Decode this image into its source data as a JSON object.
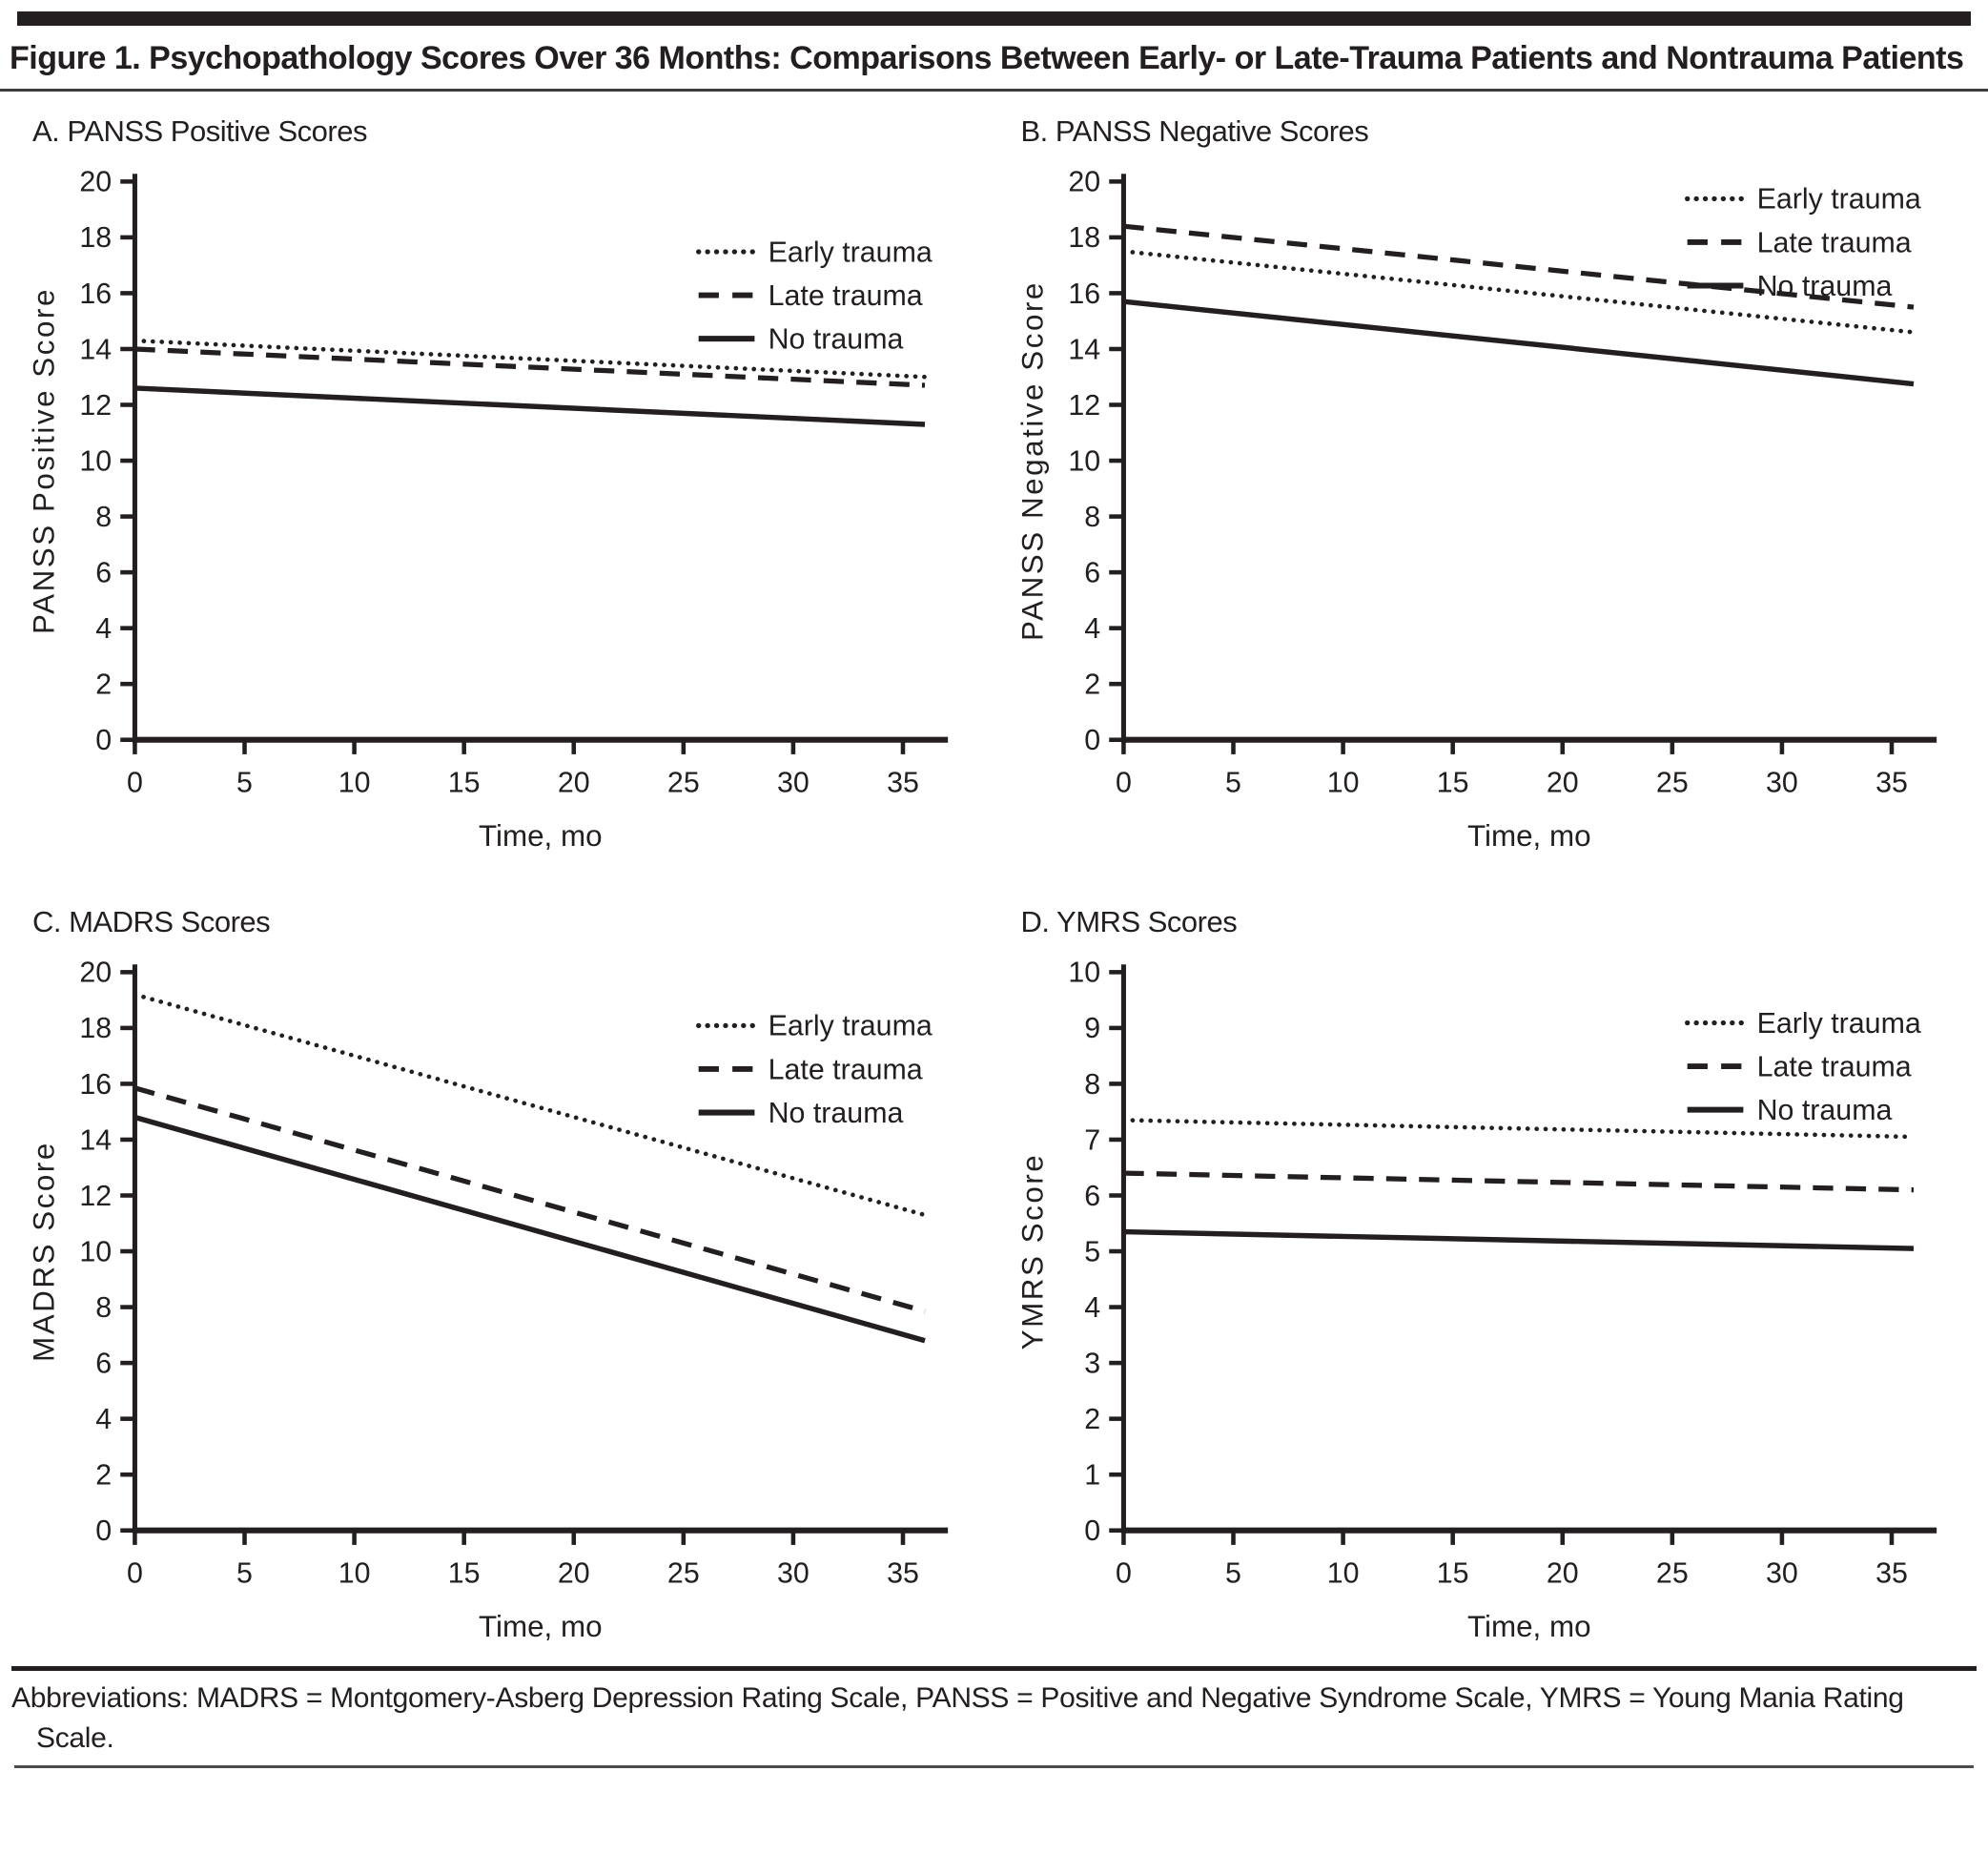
{
  "figure": {
    "title": "Figure 1. Psychopathology Scores Over 36 Months: Comparisons Between Early- or Late-Trauma Patients and Nontrauma Patients",
    "footnote": "Abbreviations: MADRS = Montgomery-Asberg Depression Rating Scale, PANSS = Positive and Negative Syndrome Scale, YMRS = Young Mania Rating Scale."
  },
  "colors": {
    "ink": "#231f20",
    "rule_dark": "#231f20",
    "rule_gray": "#4c4c4e"
  },
  "chart_data": [
    {
      "id": "A",
      "type": "line",
      "title": "A. PANSS Positive Scores",
      "xlabel": "Time, mo",
      "ylabel": "PANSS Positive Score",
      "xlim": [
        0,
        36
      ],
      "ylim": [
        0,
        20
      ],
      "xticks": [
        0,
        5,
        10,
        15,
        20,
        25,
        30,
        35
      ],
      "ytick_step": 2,
      "grid": false,
      "legend": {
        "position": "inside-upper-right",
        "fx": 0.695,
        "fy": 0.105
      },
      "x": [
        0,
        36
      ],
      "series": [
        {
          "name": "Early trauma",
          "style": "dotted",
          "values": [
            14.3,
            13.0
          ]
        },
        {
          "name": "Late trauma",
          "style": "dashed",
          "values": [
            14.0,
            12.7
          ]
        },
        {
          "name": "No trauma",
          "style": "solid",
          "values": [
            12.6,
            11.3
          ]
        }
      ]
    },
    {
      "id": "B",
      "type": "line",
      "title": "B. PANSS Negative Scores",
      "xlabel": "Time, mo",
      "ylabel": "PANSS Negative Score",
      "xlim": [
        0,
        36
      ],
      "ylim": [
        0,
        20
      ],
      "xticks": [
        0,
        5,
        10,
        15,
        20,
        25,
        30,
        35
      ],
      "ytick_step": 2,
      "grid": false,
      "legend": {
        "position": "inside-upper-right",
        "fx": 0.695,
        "fy": 0.01
      },
      "x": [
        0,
        36
      ],
      "series": [
        {
          "name": "Early trauma",
          "style": "dotted",
          "values": [
            17.5,
            14.6
          ]
        },
        {
          "name": "Late trauma",
          "style": "dashed",
          "values": [
            18.4,
            15.5
          ]
        },
        {
          "name": "No trauma",
          "style": "solid",
          "values": [
            15.7,
            12.75
          ]
        }
      ]
    },
    {
      "id": "C",
      "type": "line",
      "title": "C. MADRS Scores",
      "xlabel": "Time, mo",
      "ylabel": "MADRS Score",
      "xlim": [
        0,
        36
      ],
      "ylim": [
        0,
        20
      ],
      "xticks": [
        0,
        5,
        10,
        15,
        20,
        25,
        30,
        35
      ],
      "ytick_step": 2,
      "grid": false,
      "legend": {
        "position": "inside-upper-right",
        "fx": 0.695,
        "fy": 0.075
      },
      "x": [
        0,
        36
      ],
      "series": [
        {
          "name": "Early trauma",
          "style": "dotted",
          "values": [
            19.2,
            11.3
          ]
        },
        {
          "name": "Late trauma",
          "style": "dashed",
          "values": [
            15.85,
            7.85
          ]
        },
        {
          "name": "No trauma",
          "style": "solid",
          "values": [
            14.8,
            6.8
          ]
        }
      ]
    },
    {
      "id": "D",
      "type": "line",
      "title": "D. YMRS Scores",
      "xlabel": "Time, mo",
      "ylabel": "YMRS Score",
      "xlim": [
        0,
        36
      ],
      "ylim": [
        0,
        10
      ],
      "xticks": [
        0,
        5,
        10,
        15,
        20,
        25,
        30,
        35
      ],
      "ytick_step": 1,
      "grid": false,
      "legend": {
        "position": "inside-upper-right",
        "fx": 0.695,
        "fy": 0.07
      },
      "x": [
        0,
        36
      ],
      "series": [
        {
          "name": "Early trauma",
          "style": "dotted",
          "values": [
            7.35,
            7.05
          ]
        },
        {
          "name": "Late trauma",
          "style": "dashed",
          "values": [
            6.4,
            6.1
          ]
        },
        {
          "name": "No trauma",
          "style": "solid",
          "values": [
            5.35,
            5.05
          ]
        }
      ]
    }
  ]
}
